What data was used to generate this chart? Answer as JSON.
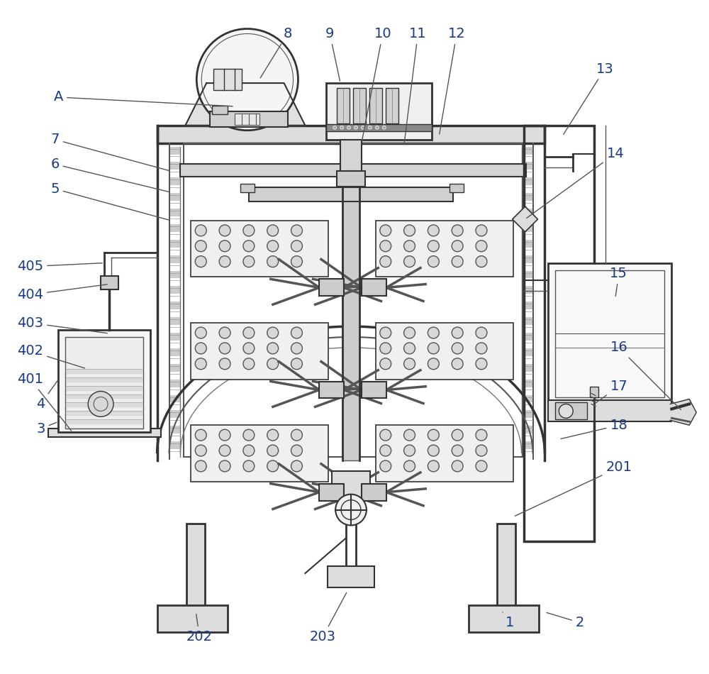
{
  "bg_color": "#ffffff",
  "lc": "#333333",
  "lc2": "#555555",
  "lc3": "#777777",
  "blue_label": "#1a3a8a",
  "label_fontsize": 14,
  "gray_fill": "#e8e8e8",
  "light_fill": "#f2f2f2",
  "hatch_color": "#aaaaaa"
}
